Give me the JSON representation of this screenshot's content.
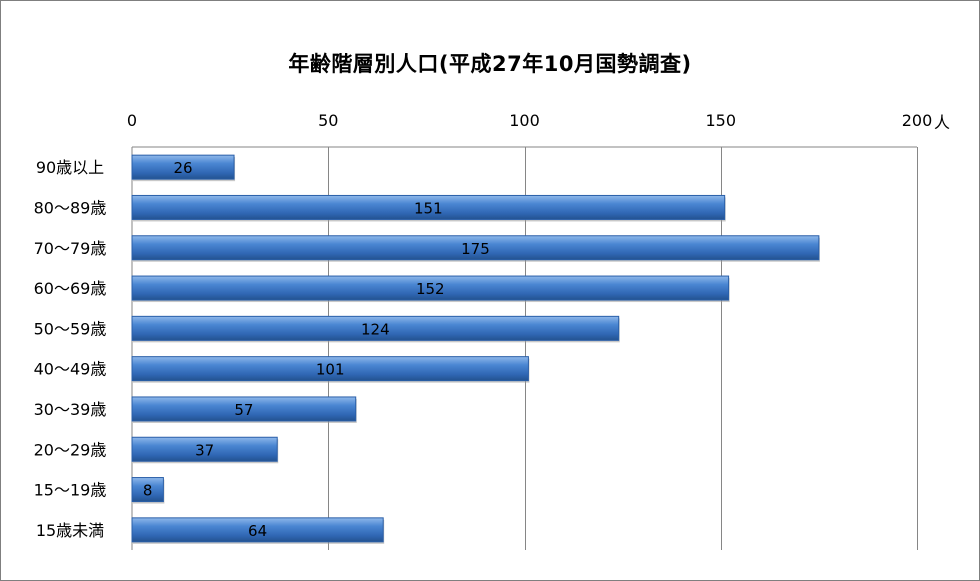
{
  "chart_data": {
    "type": "bar",
    "orientation": "horizontal",
    "title": "年齢階層別人口(平成27年10月国勢調査)",
    "unit_label": "人",
    "categories": [
      "90歳以上",
      "80～89歳",
      "70～79歳",
      "60～69歳",
      "50～59歳",
      "40～49歳",
      "30～39歳",
      "20～29歳",
      "15～19歳",
      "15歳未満"
    ],
    "values": [
      26,
      151,
      175,
      152,
      124,
      101,
      57,
      37,
      8,
      64
    ],
    "xlim": [
      0,
      200
    ],
    "xticks": [
      0,
      50,
      100,
      150,
      200
    ],
    "axis_position": "top",
    "grid": true,
    "data_labels": true,
    "bar_color": "#3a78c9"
  }
}
